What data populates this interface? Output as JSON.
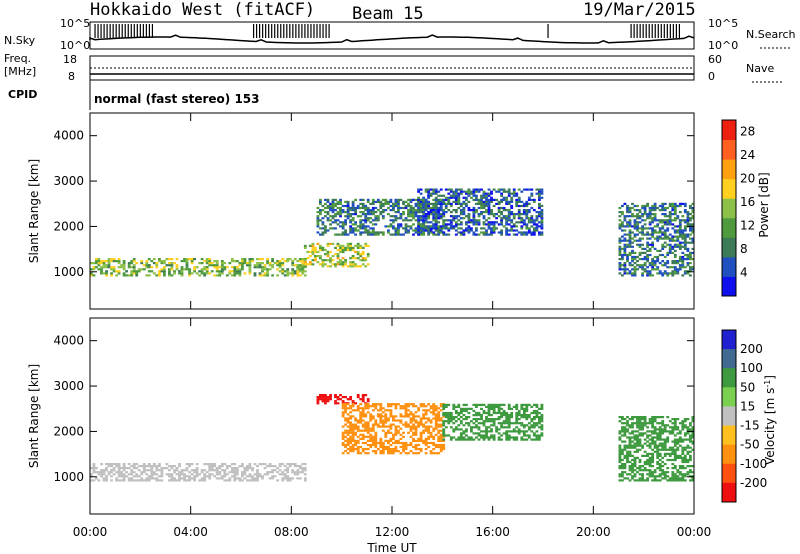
{
  "header": {
    "station": "Hokkaido West (fitACF)",
    "beam": "Beam 15",
    "date": "19/Mar/2015"
  },
  "panels": {
    "noise": {
      "left_label": "N.Sky",
      "right_label": "N.Search",
      "left_ticks": [
        "10^5",
        "10^0"
      ],
      "right_ticks": [
        "10^5",
        "10^0"
      ]
    },
    "freq": {
      "left_label_1": "Freq.",
      "left_label_2": "[MHz]",
      "right_label": "Nave",
      "left_ticks": [
        "18",
        "8"
      ],
      "right_ticks": [
        "60",
        "0"
      ]
    },
    "cpid": {
      "left_label": "CPID",
      "text": "normal (fast stereo) 153"
    }
  },
  "colors": {
    "power_scale": [
      "#1010ee",
      "#2050c0",
      "#3c7a58",
      "#4f9a3e",
      "#8cc048",
      "#ffd020",
      "#ffa010",
      "#ff6020",
      "#ee2010"
    ],
    "velocity_scale": [
      "#2020d0",
      "#406a90",
      "#3e9a3e",
      "#7cd050",
      "#c0c0c0",
      "#ffc020",
      "#ff9010",
      "#ff5010",
      "#ee1010"
    ]
  },
  "chart_data": [
    {
      "type": "heatmap",
      "title": "",
      "xlabel": "Time UT",
      "ylabel": "Slant Range [km]",
      "xlim": [
        0,
        24
      ],
      "ylim": [
        180,
        4500
      ],
      "x_ticks": [
        "00:00",
        "04:00",
        "08:00",
        "12:00",
        "16:00",
        "20:00",
        "00:00"
      ],
      "y_ticks": [
        1000,
        2000,
        3000,
        4000
      ],
      "colorbar": {
        "label": "Power [dB]",
        "ticks": [
          4,
          8,
          12,
          16,
          20,
          24,
          28
        ],
        "range": [
          0,
          30
        ]
      },
      "echo_regions": [
        {
          "x": [
            0,
            8.5
          ],
          "y": [
            900,
            1300
          ],
          "level": 14,
          "description": "near-range band"
        },
        {
          "x": [
            8.5,
            11
          ],
          "y": [
            1100,
            1600
          ],
          "level": 16
        },
        {
          "x": [
            9,
            14
          ],
          "y": [
            1800,
            2600
          ],
          "level": 8
        },
        {
          "x": [
            13,
            18
          ],
          "y": [
            1800,
            2800
          ],
          "level": 6
        },
        {
          "x": [
            21,
            24
          ],
          "y": [
            900,
            2500
          ],
          "level": 8
        }
      ]
    },
    {
      "type": "heatmap",
      "title": "",
      "xlabel": "Time UT",
      "ylabel": "Slant Range [km]",
      "xlim": [
        0,
        24
      ],
      "ylim": [
        180,
        4500
      ],
      "x_ticks": [
        "00:00",
        "04:00",
        "08:00",
        "12:00",
        "16:00",
        "20:00",
        "00:00"
      ],
      "y_ticks": [
        1000,
        2000,
        3000,
        4000
      ],
      "colorbar": {
        "label": "Velocity [m s^-1]",
        "ticks": [
          200,
          100,
          50,
          15,
          -15,
          -50,
          -100,
          -200
        ]
      },
      "echo_regions": [
        {
          "x": [
            0,
            8.5
          ],
          "y": [
            900,
            1300
          ],
          "level": 0,
          "description": "ground scatter"
        },
        {
          "x": [
            9,
            11
          ],
          "y": [
            2600,
            2800
          ],
          "level": -250
        },
        {
          "x": [
            10,
            14
          ],
          "y": [
            1500,
            2600
          ],
          "level": -40
        },
        {
          "x": [
            14,
            18
          ],
          "y": [
            1800,
            2600
          ],
          "level": 40
        },
        {
          "x": [
            21,
            24
          ],
          "y": [
            900,
            2300
          ],
          "level": 40
        }
      ]
    }
  ]
}
